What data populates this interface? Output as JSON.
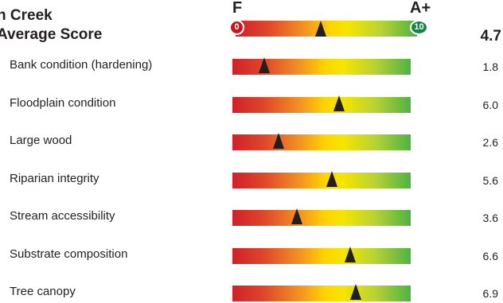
{
  "header": {
    "title_line1": "n Creek",
    "title_line2": "Average Score",
    "grade_low": "F",
    "grade_high": "A+",
    "scale_min_label": "0",
    "scale_max_label": "10",
    "average_score": "4.7",
    "average_value": 4.7
  },
  "colors": {
    "bar_red": "#d0202a",
    "bar_yellow": "#ffd400",
    "bar_green": "#4fb244",
    "circle_red": "#c4161c",
    "circle_green": "#168446",
    "marker": "#231f20"
  },
  "metrics": [
    {
      "label": "Bank condition (hardening)",
      "score": "1.8",
      "value": 1.8
    },
    {
      "label": "Floodplain condition",
      "score": "6.0",
      "value": 6.0
    },
    {
      "label": "Large wood",
      "score": "2.6",
      "value": 2.6
    },
    {
      "label": "Riparian integrity",
      "score": "5.6",
      "value": 5.6
    },
    {
      "label": "Stream accessibility",
      "score": "3.6",
      "value": 3.6
    },
    {
      "label": "Substrate composition",
      "score": "6.6",
      "value": 6.6
    },
    {
      "label": "Tree canopy",
      "score": "6.9",
      "value": 6.9
    }
  ]
}
